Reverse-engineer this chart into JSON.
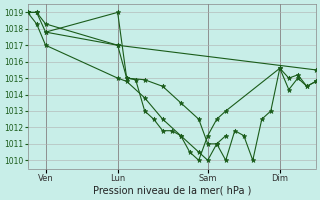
{
  "background_color": "#c8eee8",
  "grid_color": "#b0b0b0",
  "line_color": "#1a5c1a",
  "marker_color": "#1a5c1a",
  "xlabel": "Pression niveau de la mer( hPa )",
  "ylim": [
    1009.5,
    1019.5
  ],
  "yticks": [
    1010,
    1011,
    1012,
    1013,
    1014,
    1015,
    1016,
    1017,
    1018,
    1019
  ],
  "xlim": [
    0,
    16
  ],
  "xtick_labels": [
    "Ven",
    "Lun",
    "Sam",
    "Dim"
  ],
  "xtick_positions": [
    1,
    5,
    10,
    14
  ],
  "vline_positions": [
    1,
    5,
    10,
    14
  ],
  "series": [
    {
      "x": [
        0,
        0.5,
        1,
        5,
        16
      ],
      "y": [
        1019.0,
        1019.0,
        1018.3,
        1017.0,
        1015.5
      ]
    },
    {
      "x": [
        0,
        0.5,
        1,
        5,
        5.5,
        6.5,
        7.5,
        8.5,
        9.5,
        10,
        10.5,
        11,
        11.5,
        12,
        12.5,
        13,
        13.5,
        14,
        14.5,
        15,
        15.5,
        16
      ],
      "y": [
        1019.0,
        1019.0,
        1017.8,
        1017.0,
        1015.0,
        1014.9,
        1014.5,
        1013.5,
        1012.5,
        1011.0,
        1011.0,
        1010.0,
        1011.8,
        1011.5,
        1010.0,
        1012.5,
        1013.0,
        1015.6,
        1015.0,
        1015.2,
        1014.5,
        1014.8
      ]
    },
    {
      "x": [
        0,
        0.5,
        1,
        5,
        5.5,
        6.5,
        7.5,
        8.5,
        9.5,
        10,
        10.5,
        11
      ],
      "y": [
        1019.0,
        1018.3,
        1017.0,
        1015.0,
        1014.8,
        1013.8,
        1012.5,
        1011.5,
        1010.5,
        1010.0,
        1011.0,
        1011.5
      ]
    },
    {
      "x": [
        1,
        5,
        5.5,
        6,
        6.5,
        7,
        7.5,
        8,
        8.5,
        9,
        9.5,
        10,
        10.5,
        11,
        14,
        14.5,
        15,
        15.5,
        16
      ],
      "y": [
        1017.8,
        1019.0,
        1015.0,
        1014.9,
        1013.0,
        1012.5,
        1011.8,
        1011.8,
        1011.5,
        1010.5,
        1010.0,
        1011.5,
        1012.5,
        1013.0,
        1015.6,
        1014.3,
        1015.0,
        1014.5,
        1014.8
      ]
    }
  ]
}
